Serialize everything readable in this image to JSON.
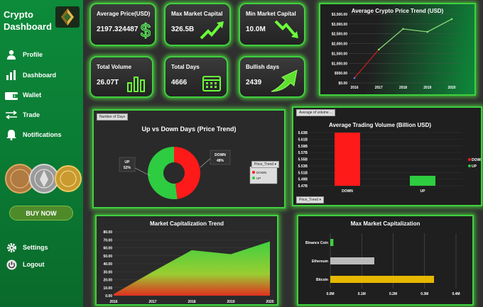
{
  "app": {
    "title_line1": "Crypto",
    "title_line2": "Dashboard"
  },
  "sidebar": {
    "items": [
      {
        "label": "Profile",
        "icon": "user-icon"
      },
      {
        "label": "Dashboard",
        "icon": "bar-chart-icon"
      },
      {
        "label": "Wallet",
        "icon": "wallet-icon"
      },
      {
        "label": "Trade",
        "icon": "exchange-arrows-icon"
      },
      {
        "label": "Notifications",
        "icon": "bell-icon"
      }
    ],
    "buy_label": "BUY NOW",
    "settings_label": "Settings",
    "logout_label": "Logout"
  },
  "kpis": {
    "avg_price": {
      "title": "Average Price(USD)",
      "value": "2197.324487",
      "icon": "dollar-icon"
    },
    "max_cap": {
      "title": "Max Market Capital",
      "value": "326.5B",
      "icon": "trend-up-icon"
    },
    "min_cap": {
      "title": "Min Market Capital",
      "value": "10.0M",
      "icon": "trend-down-icon"
    },
    "total_volume": {
      "title": "Total Volume",
      "value": "26.07T",
      "icon": "bar-chart-icon"
    },
    "total_days": {
      "title": "Total Days",
      "value": "4666",
      "icon": "calendar-icon"
    },
    "bullish_days": {
      "title": "Bullish days",
      "value": "2439",
      "icon": "arrow-up-icon"
    }
  },
  "colors": {
    "accent_green": "#3fd03f",
    "sidebar_green": "#0d8a3a",
    "down_red": "#ff1a1a",
    "up_green": "#2ecc40",
    "gold": "#e6b800",
    "grey_bar": "#bbbbbb"
  },
  "charts": {
    "price_trend": {
      "title": "Average Crypto Price Trend (USD)",
      "chart_data": {
        "type": "line",
        "x": [
          "2016",
          "2017",
          "2018",
          "2019",
          "2020"
        ],
        "y": [
          250,
          1700,
          2750,
          2600,
          3250
        ],
        "ylim": [
          0,
          3500
        ],
        "yticks": [
          "$0.00",
          "$500.00",
          "$1,000.00",
          "$1,500.00",
          "$2,000.00",
          "$2,500.00",
          "$3,000.00",
          "$3,500.00"
        ]
      }
    },
    "up_down": {
      "title": "Up vs Down Days (Price Trend)",
      "filter_chip": "Number of Days",
      "legend_header": "Price_Trend",
      "chart_data": {
        "type": "pie",
        "slices": [
          {
            "name": "UP",
            "value": 52,
            "label": "52%",
            "color": "#2ecc40"
          },
          {
            "name": "DOWN",
            "value": 48,
            "label": "48%",
            "color": "#ff1a1a"
          }
        ],
        "legend": [
          "DOWN",
          "UP"
        ]
      }
    },
    "volume": {
      "title": "Average Trading Volume (Billion USD)",
      "filter_chip": "Average of volume ...",
      "bottom_chip": "Price_Trend",
      "chart_data": {
        "type": "bar",
        "categories": [
          "DOWN",
          "UP"
        ],
        "values": [
          5.63,
          5.5
        ],
        "ylim": [
          5.47,
          5.63
        ],
        "yticks": [
          "5.47B",
          "5.49B",
          "5.51B",
          "5.53B",
          "5.55B",
          "5.57B",
          "5.59B",
          "5.61B",
          "5.63B"
        ],
        "legend": [
          "DOWN",
          "UP"
        ]
      }
    },
    "cap_trend": {
      "title": "Market Capitalization Trend",
      "chart_data": {
        "type": "area",
        "x": [
          "2016",
          "2017",
          "2018",
          "2019",
          "2020"
        ],
        "y": [
          2,
          30,
          57,
          52,
          68
        ],
        "ylim": [
          0,
          80
        ],
        "yticks": [
          "0.00",
          "10.00",
          "20.00",
          "30.00",
          "40.00",
          "50.00",
          "60.00",
          "70.00",
          "80.00"
        ]
      }
    },
    "max_cap": {
      "title": "Max Market Capitalization",
      "chart_data": {
        "type": "bar",
        "orientation": "horizontal",
        "categories": [
          "Binance Coin",
          "Ethereum",
          "Bitcoin"
        ],
        "values": [
          0.01,
          0.14,
          0.33
        ],
        "xlim": [
          0,
          0.4
        ],
        "xticks": [
          "0.0M",
          "0.1M",
          "0.2M",
          "0.3M",
          "0.4M"
        ]
      }
    }
  }
}
